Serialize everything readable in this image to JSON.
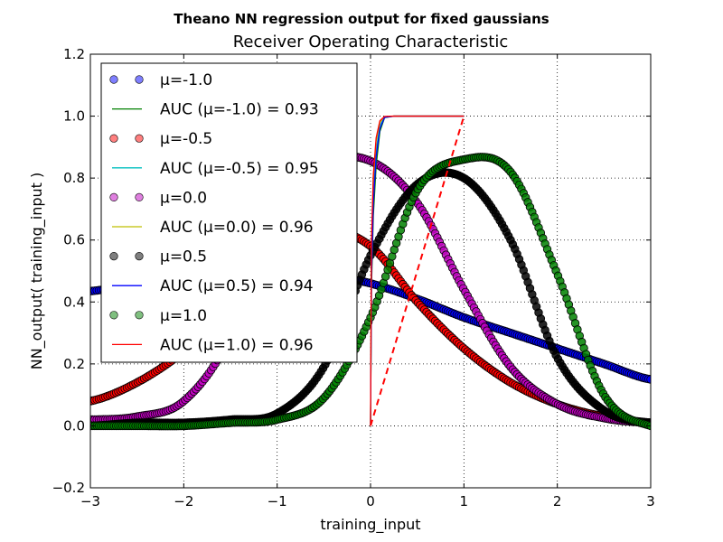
{
  "suptitle": "Theano NN regression output for fixed gaussians",
  "chart_data": {
    "type": "scatter",
    "title": "Receiver Operating Characteristic",
    "xlabel": "training_input",
    "ylabel": "NN_output( training_input )",
    "xlim": [
      -3,
      3
    ],
    "ylim": [
      -0.2,
      1.2
    ],
    "xticks": [
      "−3",
      "−2",
      "−1",
      "0",
      "1",
      "2",
      "3"
    ],
    "xtick_values": [
      -3,
      -2,
      -1,
      0,
      1,
      2,
      3
    ],
    "yticks": [
      "−0.2",
      "0.0",
      "0.2",
      "0.4",
      "0.6",
      "0.8",
      "1.0",
      "1.2"
    ],
    "ytick_values": [
      -0.2,
      0.0,
      0.2,
      0.4,
      0.6,
      0.8,
      1.0,
      1.2
    ],
    "grid": true,
    "legend_position": "upper-left",
    "series": [
      {
        "mu_label": "-1.0",
        "color": "#0000ff",
        "x": [
          -3.0,
          -2.5,
          -2.0,
          -1.5,
          -1.0,
          -0.5,
          0.0,
          0.5,
          1.0,
          1.5,
          2.0,
          2.5,
          3.0
        ],
        "y": [
          0.435,
          0.46,
          0.485,
          0.495,
          0.5,
          0.49,
          0.46,
          0.41,
          0.35,
          0.3,
          0.25,
          0.2,
          0.15
        ]
      },
      {
        "mu_label": "-0.5",
        "color": "#ff0000",
        "x": [
          -3.0,
          -2.5,
          -2.0,
          -1.5,
          -1.0,
          -0.5,
          0.0,
          0.5,
          1.0,
          1.5,
          2.0,
          2.5,
          3.0
        ],
        "y": [
          0.08,
          0.14,
          0.24,
          0.38,
          0.53,
          0.63,
          0.58,
          0.4,
          0.25,
          0.14,
          0.07,
          0.03,
          0.01
        ]
      },
      {
        "mu_label": "0.0",
        "color": "#bf00bf",
        "x": [
          -3.0,
          -2.5,
          -2.0,
          -1.5,
          -1.0,
          -0.5,
          0.0,
          0.5,
          1.0,
          1.5,
          2.0,
          2.5,
          3.0
        ],
        "y": [
          0.02,
          0.03,
          0.08,
          0.29,
          0.71,
          0.85,
          0.855,
          0.72,
          0.44,
          0.19,
          0.07,
          0.025,
          0.01
        ]
      },
      {
        "mu_label": "0.5",
        "color": "#000000",
        "x": [
          -3.0,
          -2.5,
          -2.0,
          -1.5,
          -1.0,
          -0.5,
          0.0,
          0.5,
          1.0,
          1.5,
          2.0,
          2.5,
          3.0
        ],
        "y": [
          0.0,
          0.01,
          0.01,
          0.02,
          0.04,
          0.19,
          0.55,
          0.78,
          0.8,
          0.6,
          0.22,
          0.05,
          0.01
        ]
      },
      {
        "mu_label": "1.0",
        "color": "#008000",
        "x": [
          -3.0,
          -2.5,
          -2.0,
          -1.5,
          -1.0,
          -0.5,
          0.0,
          0.5,
          1.0,
          1.5,
          2.0,
          2.5,
          3.0
        ],
        "y": [
          0.0,
          0.0,
          0.0,
          0.01,
          0.02,
          0.09,
          0.35,
          0.76,
          0.86,
          0.82,
          0.49,
          0.1,
          0.0
        ]
      }
    ],
    "roc_curves": [
      {
        "mu_label": "-1.0",
        "auc": "0.93",
        "color": "#008000",
        "x": [
          0.0,
          0.005,
          0.01,
          0.03,
          0.06,
          0.1,
          0.15,
          0.25,
          0.5,
          0.75,
          1.0
        ],
        "y": [
          0.0,
          0.22,
          0.45,
          0.68,
          0.84,
          0.95,
          0.995,
          1.0,
          1.0,
          1.0,
          1.0
        ]
      },
      {
        "mu_label": "-0.5",
        "auc": "0.95",
        "color": "#00bfbf",
        "x": [
          0.0,
          0.005,
          0.01,
          0.03,
          0.06,
          0.1,
          0.15,
          0.25,
          0.5,
          0.75,
          1.0
        ],
        "y": [
          0.0,
          0.26,
          0.52,
          0.75,
          0.89,
          0.97,
          0.997,
          1.0,
          1.0,
          1.0,
          1.0
        ]
      },
      {
        "mu_label": "0.0",
        "auc": "0.96",
        "color": "#bfbf00",
        "x": [
          0.0,
          0.005,
          0.01,
          0.03,
          0.06,
          0.1,
          0.15,
          0.25,
          0.5,
          0.75,
          1.0
        ],
        "y": [
          0.0,
          0.3,
          0.58,
          0.8,
          0.92,
          0.98,
          0.998,
          1.0,
          1.0,
          1.0,
          1.0
        ]
      },
      {
        "mu_label": "0.5",
        "auc": "0.94",
        "color": "#0000ff",
        "x": [
          0.0,
          0.005,
          0.01,
          0.03,
          0.06,
          0.1,
          0.15,
          0.25,
          0.5,
          0.75,
          1.0
        ],
        "y": [
          0.0,
          0.24,
          0.48,
          0.72,
          0.87,
          0.96,
          0.996,
          1.0,
          1.0,
          1.0,
          1.0
        ]
      },
      {
        "mu_label": "1.0",
        "auc": "0.96",
        "color": "#ff0000",
        "x": [
          0.0,
          0.005,
          0.01,
          0.03,
          0.06,
          0.1,
          0.15,
          0.25,
          0.5,
          0.75,
          1.0
        ],
        "y": [
          0.0,
          0.31,
          0.6,
          0.81,
          0.93,
          0.985,
          0.999,
          1.0,
          1.0,
          1.0,
          1.0
        ]
      }
    ],
    "diagonal": {
      "x": [
        0,
        1
      ],
      "y": [
        0,
        1
      ],
      "color": "#ff0000",
      "style": "dashed"
    },
    "legend": [
      {
        "kind": "marker",
        "text": "μ=-1.0",
        "color": "#0000ff"
      },
      {
        "kind": "line",
        "text": "AUC (μ=-1.0) = 0.93",
        "color": "#008000"
      },
      {
        "kind": "marker",
        "text": "μ=-0.5",
        "color": "#ff0000"
      },
      {
        "kind": "line",
        "text": "AUC (μ=-0.5) = 0.95",
        "color": "#00bfbf"
      },
      {
        "kind": "marker",
        "text": "μ=0.0",
        "color": "#bf00bf"
      },
      {
        "kind": "line",
        "text": "AUC (μ=0.0) = 0.96",
        "color": "#bfbf00"
      },
      {
        "kind": "marker",
        "text": "μ=0.5",
        "color": "#000000"
      },
      {
        "kind": "line",
        "text": "AUC (μ=0.5) = 0.94",
        "color": "#0000ff"
      },
      {
        "kind": "marker",
        "text": "μ=1.0",
        "color": "#008000"
      },
      {
        "kind": "line",
        "text": "AUC (μ=1.0) = 0.96",
        "color": "#ff0000"
      }
    ]
  }
}
